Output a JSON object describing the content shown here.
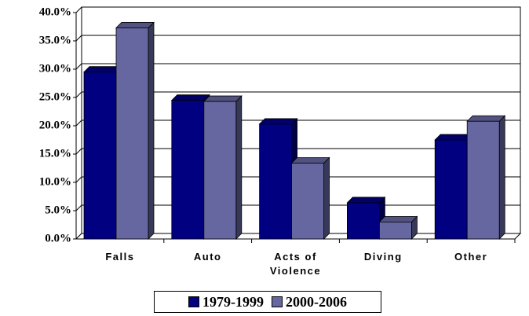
{
  "chart_data": {
    "type": "bar",
    "categories": [
      "Falls",
      "Auto",
      "Acts of Violence",
      "Diving",
      "Other"
    ],
    "series": [
      {
        "name": "1979-1999",
        "color": "#000080",
        "values": [
          29.5,
          24.5,
          20.3,
          6.4,
          17.5
        ]
      },
      {
        "name": "2000-2006",
        "color": "#6666a0",
        "values": [
          37.3,
          24.3,
          13.4,
          3.0,
          20.8
        ]
      }
    ],
    "ylim": [
      0,
      40
    ],
    "yticks": [
      {
        "value": 0,
        "label": "0.0%"
      },
      {
        "value": 5,
        "label": "5.0%"
      },
      {
        "value": 10,
        "label": "10.0%"
      },
      {
        "value": 15,
        "label": "15.0%"
      },
      {
        "value": 20,
        "label": "20.0%"
      },
      {
        "value": 25,
        "label": "25.0%"
      },
      {
        "value": 30,
        "label": "30.0%"
      },
      {
        "value": 35,
        "label": "35.0%"
      },
      {
        "value": 40,
        "label": "40.0%"
      }
    ],
    "grid": true
  }
}
